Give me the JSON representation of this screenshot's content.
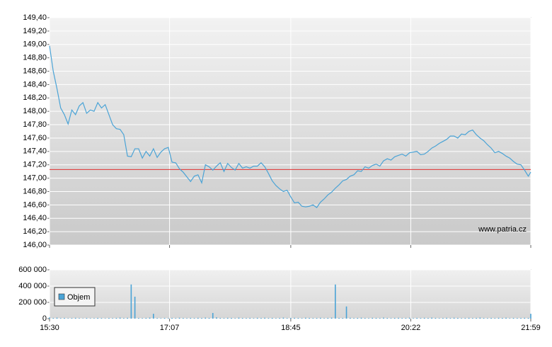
{
  "chart_data": [
    {
      "type": "line",
      "x": [
        930,
        933,
        936,
        939,
        942,
        945,
        948,
        951,
        954,
        957,
        960,
        963,
        966,
        969,
        972,
        975,
        978,
        981,
        984,
        987,
        990,
        993,
        996,
        999,
        1002,
        1005,
        1008,
        1011,
        1014,
        1017,
        1020,
        1023,
        1026,
        1029,
        1032,
        1035,
        1038,
        1041,
        1044,
        1047,
        1050,
        1053,
        1056,
        1059,
        1062,
        1065,
        1068,
        1071,
        1074,
        1077,
        1080,
        1083,
        1086,
        1089,
        1092,
        1095,
        1098,
        1101,
        1104,
        1107,
        1110,
        1113,
        1116,
        1119,
        1122,
        1125,
        1128,
        1131,
        1134,
        1137,
        1140,
        1143,
        1146,
        1149,
        1152,
        1155,
        1158,
        1161,
        1164,
        1167,
        1170,
        1173,
        1176,
        1179,
        1182,
        1185,
        1188,
        1191,
        1194,
        1197,
        1200,
        1203,
        1206,
        1209,
        1212,
        1215,
        1218,
        1221,
        1224,
        1227,
        1230,
        1233,
        1236,
        1239,
        1242,
        1245,
        1248,
        1251,
        1254,
        1257,
        1260,
        1263,
        1266,
        1269,
        1272,
        1275,
        1278,
        1281,
        1284,
        1287,
        1290,
        1293,
        1296,
        1299,
        1302,
        1305,
        1308,
        1311,
        1314,
        1317,
        1319
      ],
      "series": [
        {
          "color": "#4aa3d6",
          "values": [
            148.98,
            148.6,
            148.34,
            148.05,
            147.95,
            147.81,
            148.02,
            147.95,
            148.08,
            148.13,
            147.97,
            148.02,
            148.0,
            148.13,
            148.05,
            148.1,
            147.95,
            147.8,
            147.74,
            147.73,
            147.65,
            147.33,
            147.32,
            147.44,
            147.44,
            147.3,
            147.4,
            147.33,
            147.44,
            147.31,
            147.39,
            147.44,
            147.46,
            147.24,
            147.23,
            147.14,
            147.09,
            147.02,
            146.95,
            147.03,
            147.05,
            146.93,
            147.2,
            147.17,
            147.12,
            147.18,
            147.23,
            147.1,
            147.22,
            147.16,
            147.12,
            147.22,
            147.15,
            147.17,
            147.15,
            147.18,
            147.18,
            147.23,
            147.17,
            147.07,
            146.96,
            146.89,
            146.84,
            146.8,
            146.82,
            146.72,
            146.63,
            146.64,
            146.58,
            146.57,
            146.58,
            146.6,
            146.56,
            146.64,
            146.69,
            146.75,
            146.79,
            146.85,
            146.9,
            146.96,
            146.98,
            147.03,
            147.05,
            147.11,
            147.1,
            147.17,
            147.15,
            147.19,
            147.21,
            147.18,
            147.26,
            147.29,
            147.27,
            147.32,
            147.34,
            147.36,
            147.33,
            147.38,
            147.39,
            147.4,
            147.35,
            147.36,
            147.4,
            147.45,
            147.48,
            147.52,
            147.55,
            147.58,
            147.63,
            147.63,
            147.6,
            147.66,
            147.65,
            147.7,
            147.72,
            147.65,
            147.6,
            147.56,
            147.5,
            147.45,
            147.38,
            147.4,
            147.37,
            147.33,
            147.3,
            147.25,
            147.21,
            147.2,
            147.12,
            147.03,
            147.09
          ]
        }
      ],
      "reference_line": {
        "value": 147.13,
        "color": "#e03030"
      },
      "xlim": [
        930,
        1319
      ],
      "ylim": [
        146.0,
        149.4
      ],
      "yticks": [
        {
          "value": 146.0,
          "label": "146,00"
        },
        {
          "value": 146.2,
          "label": "146,20"
        },
        {
          "value": 146.4,
          "label": "146,40"
        },
        {
          "value": 146.6,
          "label": "146,60"
        },
        {
          "value": 146.8,
          "label": "146,80"
        },
        {
          "value": 147.0,
          "label": "147,00"
        },
        {
          "value": 147.2,
          "label": "147,20"
        },
        {
          "value": 147.4,
          "label": "147,40"
        },
        {
          "value": 147.6,
          "label": "147,60"
        },
        {
          "value": 147.8,
          "label": "147,80"
        },
        {
          "value": 148.0,
          "label": "148,00"
        },
        {
          "value": 148.2,
          "label": "148,20"
        },
        {
          "value": 148.4,
          "label": "148,40"
        },
        {
          "value": 148.6,
          "label": "148,60"
        },
        {
          "value": 148.8,
          "label": "148,80"
        },
        {
          "value": 149.0,
          "label": "149,00"
        },
        {
          "value": 149.2,
          "label": "149,20"
        },
        {
          "value": 149.4,
          "label": "149,40"
        }
      ],
      "grid": true,
      "watermark": "www.patria.cz"
    },
    {
      "type": "bar",
      "x": [
        930,
        933,
        936,
        939,
        942,
        945,
        948,
        951,
        954,
        957,
        960,
        963,
        966,
        969,
        972,
        975,
        978,
        981,
        984,
        987,
        990,
        993,
        996,
        999,
        1002,
        1005,
        1008,
        1011,
        1014,
        1017,
        1020,
        1023,
        1026,
        1029,
        1032,
        1035,
        1038,
        1041,
        1044,
        1047,
        1050,
        1053,
        1056,
        1059,
        1062,
        1065,
        1068,
        1071,
        1074,
        1077,
        1080,
        1083,
        1086,
        1089,
        1092,
        1095,
        1098,
        1101,
        1104,
        1107,
        1110,
        1113,
        1116,
        1119,
        1122,
        1125,
        1128,
        1131,
        1134,
        1137,
        1140,
        1143,
        1146,
        1149,
        1152,
        1155,
        1158,
        1161,
        1164,
        1167,
        1170,
        1173,
        1176,
        1179,
        1182,
        1185,
        1188,
        1191,
        1194,
        1197,
        1200,
        1203,
        1206,
        1209,
        1212,
        1215,
        1218,
        1221,
        1224,
        1227,
        1230,
        1233,
        1236,
        1239,
        1242,
        1245,
        1248,
        1251,
        1254,
        1257,
        1260,
        1263,
        1266,
        1269,
        1272,
        1275,
        1278,
        1281,
        1284,
        1287,
        1290,
        1293,
        1296,
        1299,
        1302,
        1305,
        1308,
        1311,
        1314,
        1317,
        1319
      ],
      "series": [
        {
          "name": "Objem",
          "color": "#4aa3d6",
          "values": [
            15000,
            8000,
            12000,
            6000,
            9000,
            5000,
            7000,
            10000,
            6000,
            4000,
            8000,
            5000,
            6000,
            9000,
            7000,
            5000,
            8000,
            6000,
            9000,
            12000,
            7000,
            10000,
            420000,
            270000,
            8000,
            6000,
            9000,
            12000,
            60000,
            7000,
            5000,
            8000,
            6000,
            9000,
            7000,
            11000,
            8000,
            6000,
            9000,
            7000,
            10000,
            8000,
            12000,
            9000,
            70000,
            15000,
            8000,
            7000,
            10000,
            9000,
            6000,
            12000,
            8000,
            7000,
            9000,
            6000,
            10000,
            8000,
            11000,
            7000,
            9000,
            6000,
            8000,
            12000,
            7000,
            9000,
            10000,
            8000,
            6000,
            11000,
            9000,
            7000,
            8000,
            10000,
            6000,
            9000,
            12000,
            420000,
            9000,
            8000,
            150000,
            10000,
            7000,
            9000,
            11000,
            8000,
            6000,
            10000,
            9000,
            7000,
            12000,
            8000,
            6000,
            9000,
            10000,
            7000,
            8000,
            11000,
            6000,
            9000,
            7000,
            10000,
            8000,
            12000,
            9000,
            6000,
            8000,
            10000,
            7000,
            11000,
            9000,
            6000,
            8000,
            10000,
            7000,
            9000,
            12000,
            8000,
            6000,
            9000,
            7000,
            10000,
            8000,
            11000,
            6000,
            9000,
            7000,
            8000,
            10000,
            9000,
            60000
          ]
        }
      ],
      "xlim": [
        930,
        1319
      ],
      "xticks": [
        {
          "value": 930,
          "label": "15:30"
        },
        {
          "value": 1027,
          "label": "17:07"
        },
        {
          "value": 1125,
          "label": "18:45"
        },
        {
          "value": 1222,
          "label": "20:22"
        },
        {
          "value": 1319,
          "label": "21:59"
        }
      ],
      "ylim": [
        0,
        600000
      ],
      "yticks": [
        0,
        {
          "value": 200000,
          "label": "200 000"
        },
        {
          "value": 400000,
          "label": "400 000"
        },
        {
          "value": 600000,
          "label": "600 000"
        }
      ],
      "grid": true,
      "legend": "upper left"
    }
  ]
}
